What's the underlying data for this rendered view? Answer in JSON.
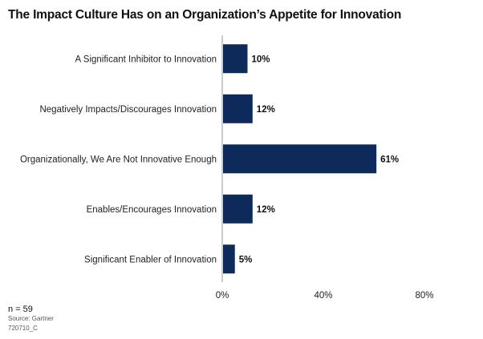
{
  "chart_data": {
    "type": "bar",
    "orientation": "horizontal",
    "title": "The Impact Culture Has on an Organization’s Appetite for Innovation",
    "categories": [
      "A Significant Inhibitor to Innovation",
      "Negatively Impacts/Discourages Innovation",
      "Organizationally, We Are Not Innovative Enough",
      "Enables/Encourages Innovation",
      "Significant Enabler of Innovation"
    ],
    "values": [
      10,
      12,
      61,
      12,
      5
    ],
    "value_labels": [
      "10%",
      "12%",
      "61%",
      "12%",
      "5%"
    ],
    "xlim": [
      0,
      80
    ],
    "x_ticks": [
      0,
      40,
      80
    ],
    "x_tick_labels": [
      "0%",
      "40%",
      "80%"
    ],
    "bar_color": "#0d2a5a",
    "grid": false
  },
  "footnotes": {
    "n": "n = 59",
    "source": "Source: Gartner",
    "id": "720710_C"
  }
}
